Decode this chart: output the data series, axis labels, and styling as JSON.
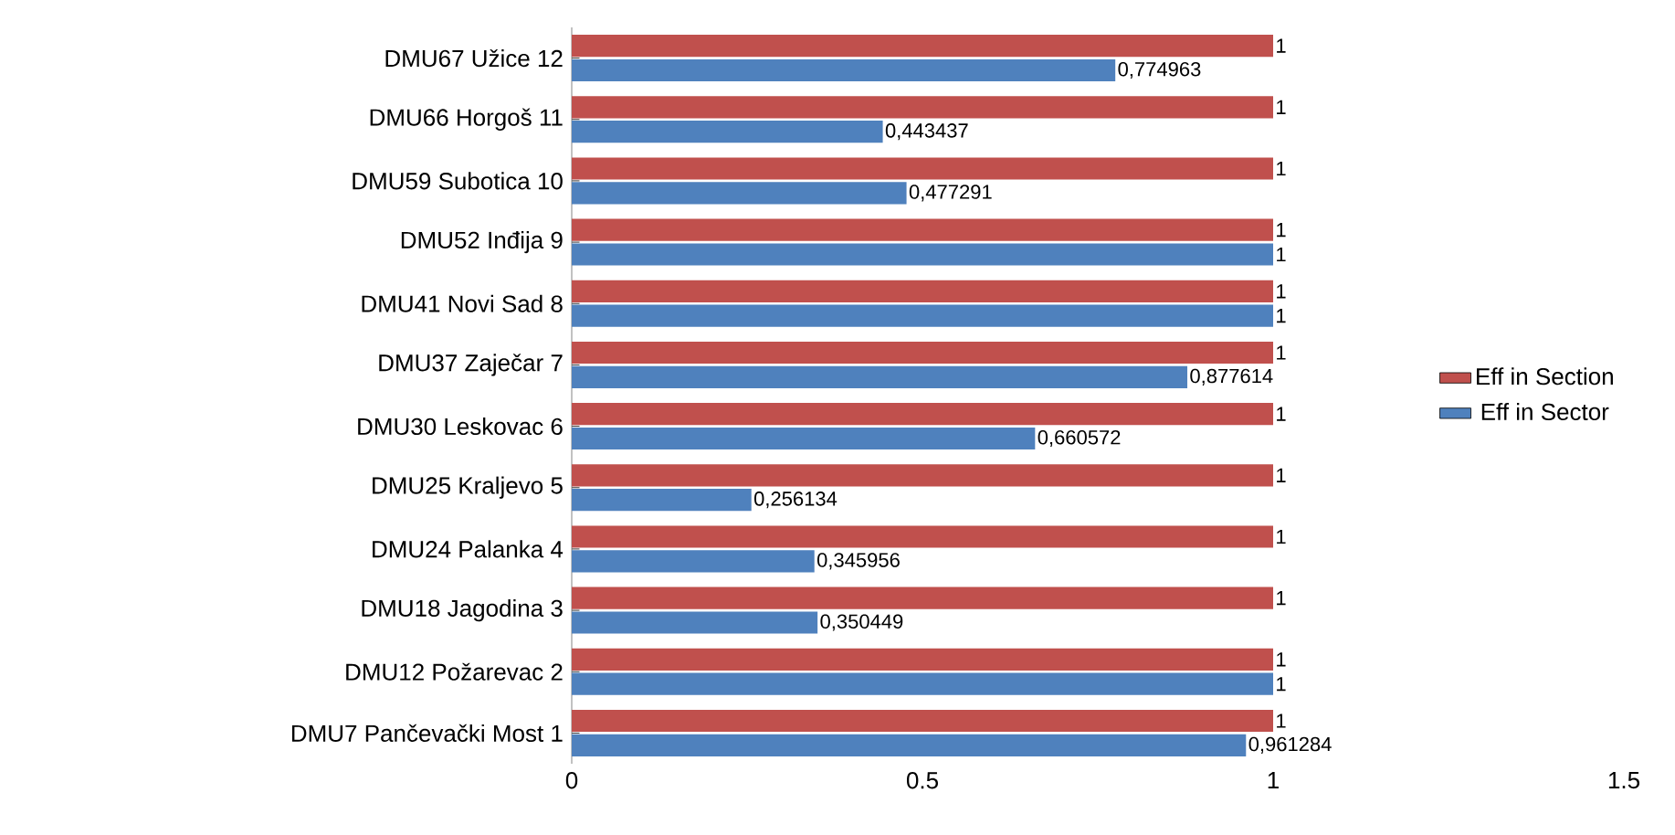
{
  "chart_data": {
    "type": "bar",
    "orientation": "horizontal",
    "categories": [
      "DMU67 Užice 12",
      "DMU66 Horgoš 11",
      "DMU59 Subotica 10",
      "DMU52 Inđija 9",
      "DMU41 Novi Sad 8",
      "DMU37 Zaječar 7",
      "DMU30 Leskovac 6",
      "DMU25 Kraljevo 5",
      "DMU24 Palanka 4",
      "DMU18 Jagodina 3",
      "DMU12 Požarevac 2",
      "DMU7 Pančevački Most 1"
    ],
    "series": [
      {
        "name": "Eff in Section",
        "color": "#c0504d",
        "values": [
          1,
          1,
          1,
          1,
          1,
          1,
          1,
          1,
          1,
          1,
          1,
          1
        ],
        "value_labels": [
          "1",
          "1",
          "1",
          "1",
          "1",
          "1",
          "1",
          "1",
          "1",
          "1",
          "1",
          "1"
        ]
      },
      {
        "name": "Eff in Sector",
        "color": "#4f81bd",
        "values": [
          0.774963,
          0.443437,
          0.477291,
          1,
          1,
          0.877614,
          0.660572,
          0.256134,
          0.345956,
          0.350449,
          1,
          0.961284
        ],
        "value_labels": [
          "0,774963",
          "0,443437",
          "0,477291",
          "1",
          "1",
          "0,877614",
          "0,660572",
          "0,256134",
          "0,345956",
          "0,350449",
          "1",
          "0,961284"
        ]
      }
    ],
    "xlim": [
      0,
      1.5
    ],
    "xticks": [
      0,
      0.5,
      1,
      1.5
    ],
    "legend": "right"
  }
}
